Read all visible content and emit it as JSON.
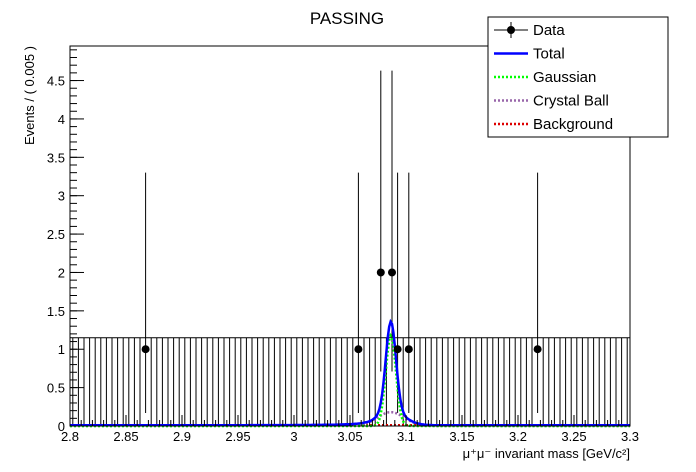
{
  "chart_data": {
    "type": "scatter",
    "title": "PASSING",
    "xlabel": "μ⁺μ⁻ invariant mass [GeV/c²]",
    "ylabel": "Events / ( 0.005 )",
    "xlim": [
      2.8,
      3.3
    ],
    "ylim": [
      0,
      4.95
    ],
    "xticks": [
      "2.8",
      "2.85",
      "2.9",
      "2.95",
      "3",
      "3.05",
      "3.1",
      "3.15",
      "3.2",
      "3.25",
      "3.3"
    ],
    "yticks": [
      "0",
      "0.5",
      "1",
      "1.5",
      "2",
      "2.5",
      "3",
      "3.5",
      "4",
      "4.5"
    ],
    "bin_width": 0.005,
    "grid": false,
    "legend_position": "top-right",
    "data_points": [
      {
        "x": 2.8675,
        "y": 1,
        "err_low": 0.83,
        "err_high": 2.3
      },
      {
        "x": 3.0575,
        "y": 1,
        "err_low": 0.83,
        "err_high": 2.3
      },
      {
        "x": 3.0775,
        "y": 2,
        "err_low": 1.29,
        "err_high": 2.63
      },
      {
        "x": 3.0875,
        "y": 2,
        "err_low": 1.29,
        "err_high": 2.63
      },
      {
        "x": 3.0925,
        "y": 1,
        "err_low": 0.83,
        "err_high": 2.3
      },
      {
        "x": 3.1025,
        "y": 1,
        "err_low": 0.83,
        "err_high": 2.3
      },
      {
        "x": 3.2175,
        "y": 1,
        "err_low": 0.83,
        "err_high": 2.3
      }
    ],
    "empty_bin_err_high": 1.15,
    "series": [
      {
        "name": "Total",
        "color": "#0000ff",
        "style": "solid",
        "peak": 1.36
      },
      {
        "name": "Gaussian",
        "color": "#00ff00",
        "style": "dotted",
        "peak": 1.18
      },
      {
        "name": "Crystal Ball",
        "color": "#9966aa",
        "style": "dotted",
        "peak": 0.18
      },
      {
        "name": "Background",
        "color": "#dd0000",
        "style": "dotted",
        "level": 0.01
      }
    ],
    "legend": [
      "Data",
      "Total",
      "Gaussian",
      "Crystal Ball",
      "Background"
    ]
  }
}
